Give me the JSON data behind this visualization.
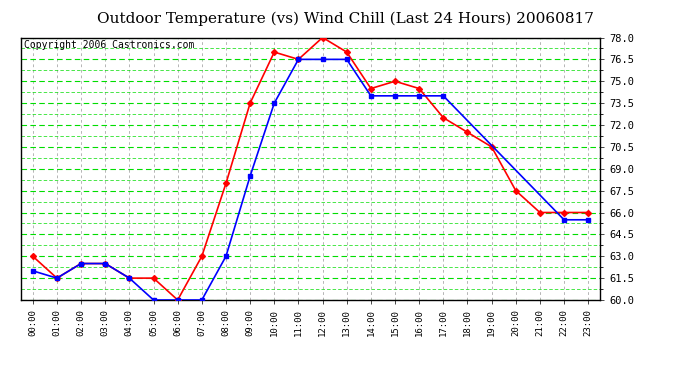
{
  "title": "Outdoor Temperature (vs) Wind Chill (Last 24 Hours) 20060817",
  "copyright": "Copyright 2006 Castronics.com",
  "hours": [
    "00:00",
    "01:00",
    "02:00",
    "03:00",
    "04:00",
    "05:00",
    "06:00",
    "07:00",
    "08:00",
    "09:00",
    "10:00",
    "11:00",
    "12:00",
    "13:00",
    "14:00",
    "15:00",
    "16:00",
    "17:00",
    "18:00",
    "19:00",
    "20:00",
    "21:00",
    "22:00",
    "23:00"
  ],
  "outdoor_temp": [
    63.0,
    61.5,
    62.5,
    62.5,
    61.5,
    61.5,
    60.0,
    63.0,
    68.0,
    73.5,
    77.0,
    76.5,
    78.0,
    77.0,
    74.5,
    75.0,
    74.5,
    72.5,
    71.5,
    70.5,
    67.5,
    66.0,
    66.0,
    66.0
  ],
  "wind_chill": [
    62.0,
    61.5,
    62.5,
    62.5,
    61.5,
    60.0,
    60.0,
    60.0,
    63.0,
    68.5,
    73.5,
    76.5,
    76.5,
    76.5,
    74.0,
    74.0,
    74.0,
    74.0,
    null,
    null,
    null,
    null,
    65.5,
    65.5
  ],
  "temp_color": "#ff0000",
  "wind_color": "#0000ff",
  "bg_color": "#ffffff",
  "plot_bg": "#ffffff",
  "grid_color": "#00dd00",
  "grid_minor_color": "#00dd00",
  "ylim": [
    60.0,
    78.0
  ],
  "yticks": [
    60.0,
    61.5,
    63.0,
    64.5,
    66.0,
    67.5,
    69.0,
    70.5,
    72.0,
    73.5,
    75.0,
    76.5,
    78.0
  ],
  "title_fontsize": 11,
  "copyright_fontsize": 7,
  "marker_size": 3,
  "line_width": 1.2
}
